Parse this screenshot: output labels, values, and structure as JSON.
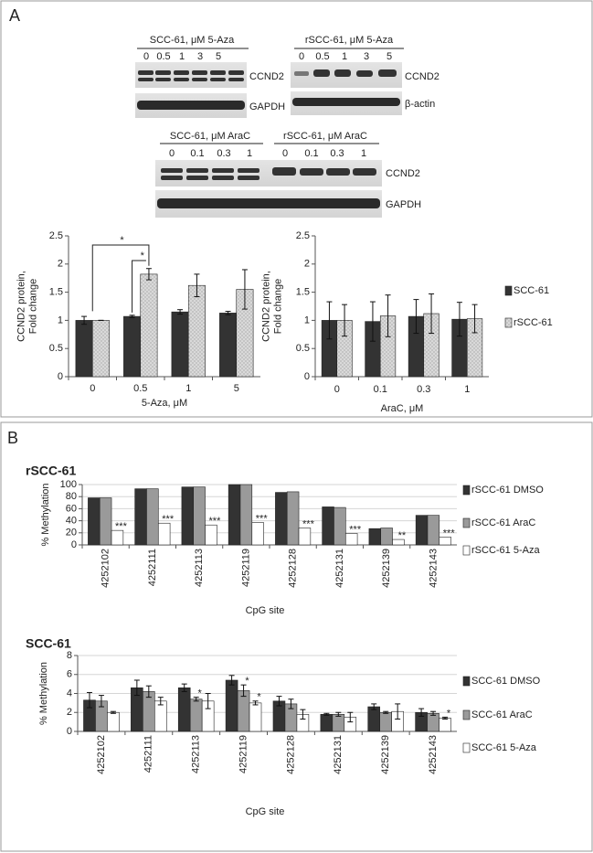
{
  "panels": {
    "a": "A",
    "b": "B"
  },
  "blots": [
    {
      "header": "SCC-61, μM 5-Aza",
      "lanes": [
        "0",
        "0.5",
        "1",
        "3",
        "5"
      ],
      "rows": [
        "CCND2",
        "GAPDH"
      ]
    },
    {
      "header": "rSCC-61, μM 5-Aza",
      "lanes": [
        "0",
        "0.5",
        "1",
        "3",
        "5"
      ],
      "rows": [
        "CCND2",
        "β-actin"
      ]
    },
    {
      "header": "SCC-61, μM AraC",
      "header2": "rSCC-61, μM AraC",
      "lanes": [
        "0",
        "0.1",
        "0.3",
        "1"
      ],
      "lanes2": [
        "0",
        "0.1",
        "0.3",
        "1"
      ],
      "rows": [
        "CCND2",
        "GAPDH"
      ]
    }
  ],
  "chart_data": [
    {
      "type": "bar",
      "categories": [
        "0",
        "0.5",
        "1",
        "5"
      ],
      "xlabel": "5-Aza, μM",
      "ylabel": [
        "CCND2 protein,",
        "Fold change"
      ],
      "ylim": [
        0,
        2.5
      ],
      "yticks": [
        0,
        0.5,
        1,
        1.5,
        2,
        2.5
      ],
      "grid": false,
      "annotations": [
        "*",
        "*"
      ],
      "series": [
        {
          "color": "#333333",
          "values": [
            1.0,
            1.07,
            1.15,
            1.13
          ],
          "errors": [
            0.07,
            0.02,
            0.04,
            0.03
          ]
        },
        {
          "color": "#b0b0b0",
          "pattern": "dots",
          "values": [
            1.0,
            1.82,
            1.62,
            1.55
          ],
          "errors": [
            0,
            0.1,
            0.2,
            0.35
          ]
        }
      ]
    },
    {
      "type": "bar",
      "categories": [
        "0",
        "0.1",
        "0.3",
        "1"
      ],
      "xlabel": "AraC, μM",
      "ylabel": [
        "CCND2 protein,",
        "Fold change"
      ],
      "ylim": [
        0,
        2.5
      ],
      "yticks": [
        0,
        0.5,
        1,
        1.5,
        2,
        2.5
      ],
      "grid": false,
      "legend": "right",
      "series": [
        {
          "name": "SCC-61",
          "color": "#333333",
          "values": [
            1.0,
            0.98,
            1.07,
            1.02
          ],
          "errors": [
            0.33,
            0.35,
            0.3,
            0.3
          ]
        },
        {
          "name": "rSCC-61",
          "color": "#b0b0b0",
          "pattern": "dots",
          "values": [
            1.0,
            1.08,
            1.12,
            1.03
          ],
          "errors": [
            0.28,
            0.37,
            0.35,
            0.25
          ]
        }
      ]
    },
    {
      "type": "bar",
      "title": "rSCC-61",
      "categories": [
        "4252102",
        "4252111",
        "4252113",
        "4252119",
        "4252128",
        "4252131",
        "4252139",
        "4252143"
      ],
      "xlabel": "CpG site",
      "ylabel": [
        "% Methylation"
      ],
      "ylim": [
        0,
        100
      ],
      "yticks": [
        0,
        20,
        40,
        60,
        80,
        100
      ],
      "grid": true,
      "legend": "right",
      "series": [
        {
          "name": "rSCC-61 DMSO",
          "color": "#333333",
          "values": [
            78,
            93,
            96,
            100,
            87,
            63,
            27,
            49
          ]
        },
        {
          "name": "rSCC-61 AraC",
          "color": "#9a9a9a",
          "values": [
            78,
            93,
            96,
            100,
            88,
            62,
            28,
            49
          ]
        },
        {
          "name": "rSCC-61 5-Aza",
          "color": "#ffffff",
          "values": [
            24,
            36,
            33,
            37,
            28,
            19,
            9,
            13
          ],
          "significance": [
            "***",
            "***",
            "***",
            "***",
            "***",
            "***",
            "**",
            "***"
          ]
        }
      ]
    },
    {
      "type": "bar",
      "title": "SCC-61",
      "categories": [
        "4252102",
        "4252111",
        "4252113",
        "4252119",
        "4252128",
        "4252131",
        "4252139",
        "4252143"
      ],
      "xlabel": "CpG site",
      "ylabel": [
        "% Methylation"
      ],
      "ylim": [
        0,
        8
      ],
      "yticks": [
        0,
        2,
        4,
        6,
        8
      ],
      "grid": true,
      "legend": "right",
      "series": [
        {
          "name": "SCC-61 DMSO",
          "color": "#333333",
          "values": [
            3.3,
            4.6,
            4.6,
            5.4,
            3.2,
            1.8,
            2.6,
            2.0
          ],
          "errors": [
            0.8,
            0.8,
            0.4,
            0.5,
            0.5,
            0.1,
            0.3,
            0.4
          ]
        },
        {
          "name": "SCC-61 AraC",
          "color": "#9a9a9a",
          "values": [
            3.2,
            4.2,
            3.4,
            4.3,
            2.9,
            1.8,
            2.0,
            1.9
          ],
          "errors": [
            0.6,
            0.6,
            0.2,
            0.6,
            0.5,
            0.2,
            0.1,
            0.2
          ],
          "significance": [
            null,
            null,
            "*",
            "*",
            null,
            null,
            null,
            null
          ]
        },
        {
          "name": "SCC-61 5-Aza",
          "color": "#ffffff",
          "values": [
            2.0,
            3.2,
            3.2,
            3.0,
            1.8,
            1.5,
            2.1,
            1.4
          ],
          "errors": [
            0.1,
            0.4,
            0.8,
            0.2,
            0.5,
            0.5,
            0.8,
            0.1
          ],
          "significance": [
            null,
            null,
            null,
            "*",
            null,
            null,
            null,
            "*"
          ]
        }
      ]
    }
  ]
}
